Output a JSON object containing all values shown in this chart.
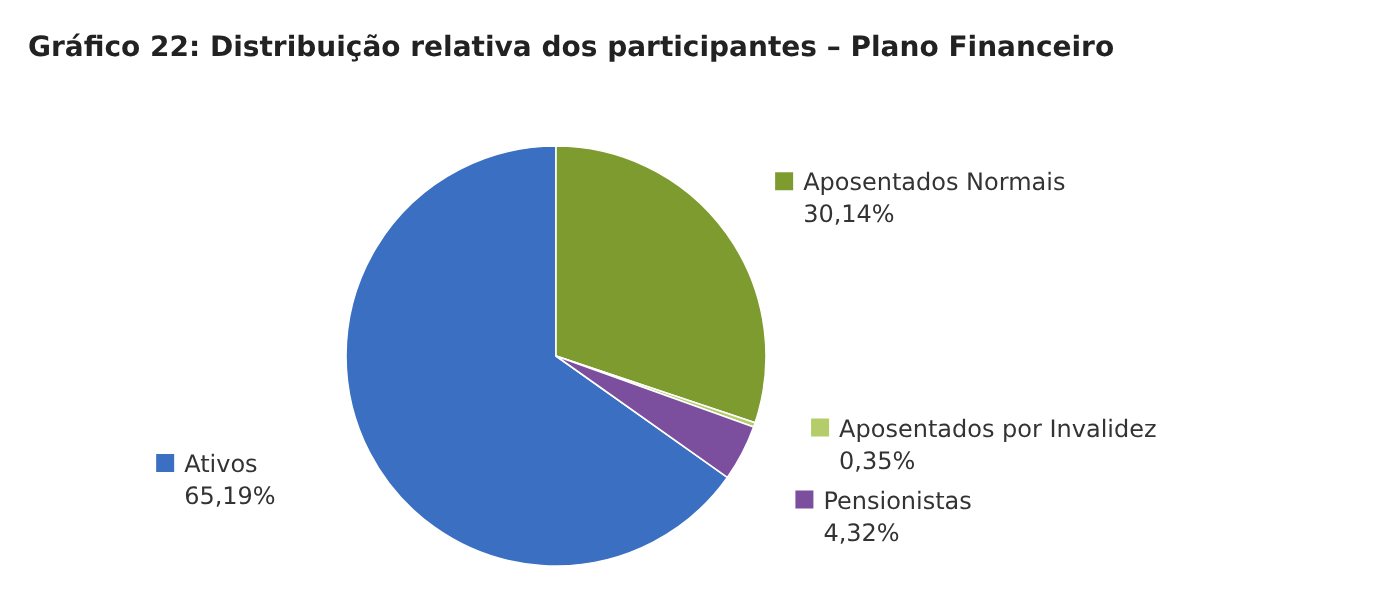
{
  "chart_data": {
    "type": "pie",
    "title": "Gráfico 22:  Distribuição relativa dos participantes – Plano Financeiro",
    "categories": [
      "Ativos",
      "Aposentados Normais",
      "Aposentados por Invalidez",
      "Pensionistas"
    ],
    "values": [
      65.19,
      30.14,
      0.35,
      4.32
    ],
    "value_labels": [
      "65,19%",
      "30,14%",
      "0,35%",
      "4,32%"
    ],
    "colors": [
      "#3b6fc2",
      "#7e9b2f",
      "#b5cc6a",
      "#7b4f9e"
    ],
    "legend": "right"
  }
}
